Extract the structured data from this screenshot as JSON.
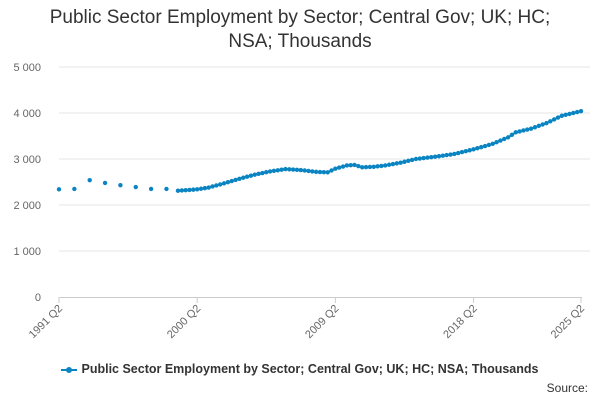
{
  "chart_data": {
    "type": "line",
    "title_lines": [
      "Public Sector Employment by Sector; Central Gov; UK; HC;",
      "NSA; Thousands"
    ],
    "x_tick_labels": [
      "1991 Q2",
      "2000 Q2",
      "2009 Q2",
      "2018 Q2",
      "2025 Q2"
    ],
    "y_tick_labels": [
      "0",
      "1 000",
      "2 000",
      "3 000",
      "4 000",
      "5 000"
    ],
    "ylim": [
      0,
      5000
    ],
    "grid": true,
    "legend_position": "bottom",
    "series": [
      {
        "name": "Public Sector Employment by Sector; Central Gov; UK; HC; NSA; Thousands",
        "color": "#0b84c2",
        "annual_points": [
          {
            "t": 1991.25,
            "value": 2340
          },
          {
            "t": 1992.25,
            "value": 2350
          },
          {
            "t": 1993.25,
            "value": 2540
          },
          {
            "t": 1994.25,
            "value": 2480
          },
          {
            "t": 1995.25,
            "value": 2430
          },
          {
            "t": 1996.25,
            "value": 2390
          },
          {
            "t": 1997.25,
            "value": 2350
          },
          {
            "t": 1998.25,
            "value": 2350
          }
        ],
        "quarterly_anchors": [
          {
            "t": 1999.0,
            "value": 2310
          },
          {
            "t": 2000.25,
            "value": 2340
          },
          {
            "t": 2001.0,
            "value": 2380
          },
          {
            "t": 2002.0,
            "value": 2470
          },
          {
            "t": 2003.0,
            "value": 2570
          },
          {
            "t": 2004.0,
            "value": 2660
          },
          {
            "t": 2005.0,
            "value": 2730
          },
          {
            "t": 2006.0,
            "value": 2780
          },
          {
            "t": 2007.0,
            "value": 2760
          },
          {
            "t": 2008.0,
            "value": 2720
          },
          {
            "t": 2008.75,
            "value": 2710
          },
          {
            "t": 2009.25,
            "value": 2790
          },
          {
            "t": 2010.0,
            "value": 2860
          },
          {
            "t": 2010.5,
            "value": 2870
          },
          {
            "t": 2011.0,
            "value": 2820
          },
          {
            "t": 2011.75,
            "value": 2830
          },
          {
            "t": 2012.5,
            "value": 2860
          },
          {
            "t": 2013.5,
            "value": 2920
          },
          {
            "t": 2014.5,
            "value": 3000
          },
          {
            "t": 2016.0,
            "value": 3060
          },
          {
            "t": 2017.0,
            "value": 3110
          },
          {
            "t": 2018.25,
            "value": 3210
          },
          {
            "t": 2019.5,
            "value": 3330
          },
          {
            "t": 2020.5,
            "value": 3470
          },
          {
            "t": 2021.0,
            "value": 3580
          },
          {
            "t": 2022.0,
            "value": 3660
          },
          {
            "t": 2023.0,
            "value": 3780
          },
          {
            "t": 2024.0,
            "value": 3940
          },
          {
            "t": 2025.25,
            "value": 4040
          }
        ]
      }
    ]
  },
  "legend": {
    "label": "Public Sector Employment by Sector; Central Gov; UK; HC; NSA; Thousands"
  },
  "source_label": "Source:"
}
